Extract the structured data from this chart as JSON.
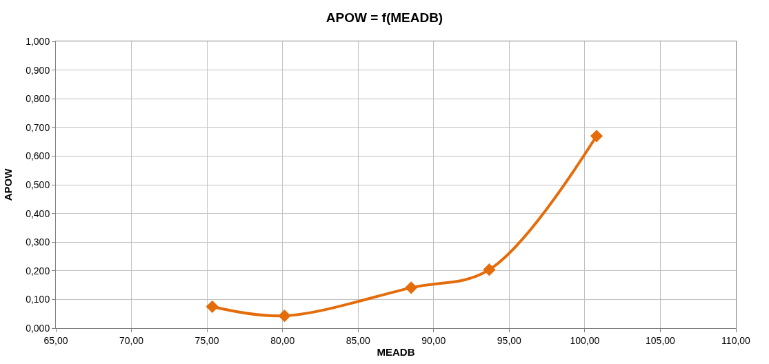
{
  "chart_data": {
    "type": "line",
    "title": "APOW = f(MEADB)",
    "xlabel": "MEADB",
    "ylabel": "APOW",
    "x": [
      75.35,
      80.13,
      88.51,
      93.68,
      100.78
    ],
    "series": [
      {
        "color": "#e46c0a",
        "values": [
          0.075,
          0.043,
          0.141,
          0.204,
          0.67
        ]
      }
    ],
    "marker": "diamond",
    "line_style": "solid",
    "grid": true,
    "xlim": [
      65,
      110
    ],
    "xticks": [
      {
        "value": 65,
        "label": "65,00"
      },
      {
        "value": 70,
        "label": "70,00"
      },
      {
        "value": 75,
        "label": "75,00"
      },
      {
        "value": 80,
        "label": "80,00"
      },
      {
        "value": 85,
        "label": "85,00"
      },
      {
        "value": 90,
        "label": "90,00"
      },
      {
        "value": 95,
        "label": "95,00"
      },
      {
        "value": 100,
        "label": "100,00"
      },
      {
        "value": 105,
        "label": "105,00"
      },
      {
        "value": 110,
        "label": "110,00"
      }
    ],
    "ylim": [
      0,
      1
    ],
    "yticks": [
      {
        "value": 0,
        "label": "0,000"
      },
      {
        "value": 0.1,
        "label": "0,100"
      },
      {
        "value": 0.2,
        "label": "0,200"
      },
      {
        "value": 0.3,
        "label": "0,300"
      },
      {
        "value": 0.4,
        "label": "0,400"
      },
      {
        "value": 0.5,
        "label": "0,500"
      },
      {
        "value": 0.6,
        "label": "0,600"
      },
      {
        "value": 0.7,
        "label": "0,700"
      },
      {
        "value": 0.8,
        "label": "0,800"
      },
      {
        "value": 0.9,
        "label": "0,900"
      },
      {
        "value": 1.0,
        "label": "1,000"
      }
    ]
  }
}
